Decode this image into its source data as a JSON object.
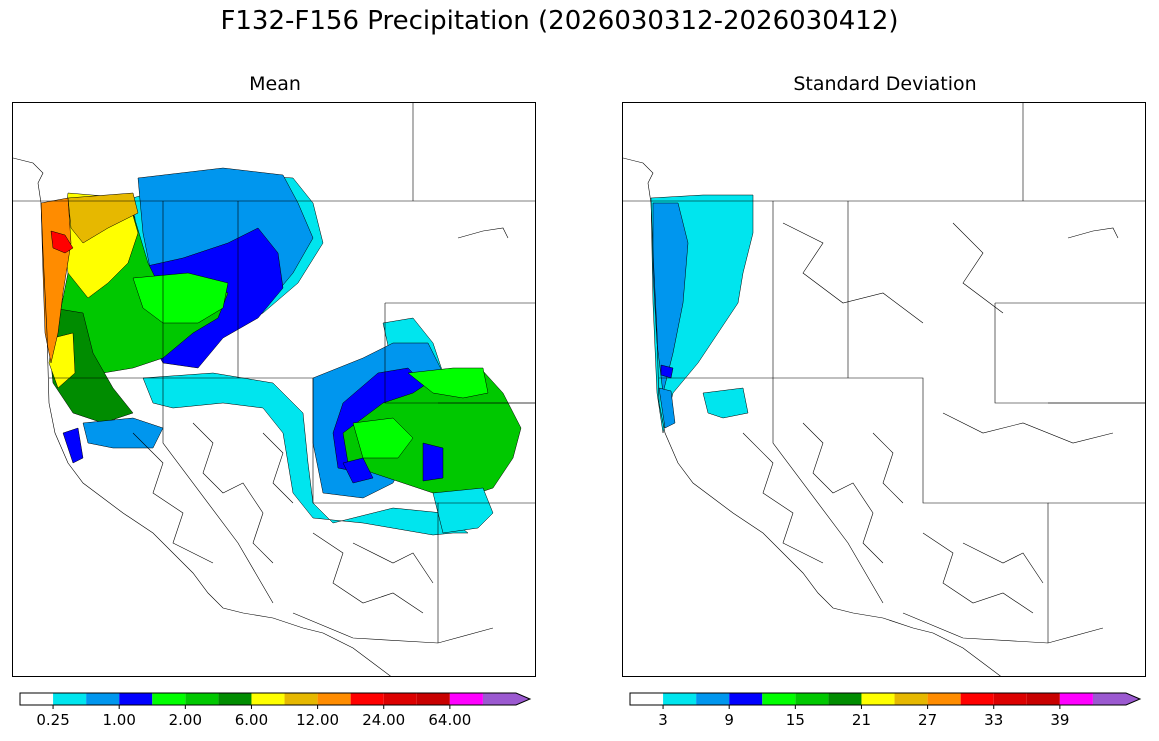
{
  "figure": {
    "title": "F132-F156 Precipitation (2026030312-2026030412)"
  },
  "palette": [
    "#ffffff",
    "#00e5ee",
    "#0096ee",
    "#0000ff",
    "#00ff00",
    "#00c800",
    "#008c00",
    "#ffff00",
    "#e6b800",
    "#ff8c00",
    "#ff0000",
    "#dc0000",
    "#c80000",
    "#ff00ff",
    "#9b59d0"
  ],
  "panels": [
    {
      "id": "mean",
      "title": "Mean",
      "colorbar_ticks": [
        "0.25",
        "1.00",
        "2.00",
        "6.00",
        "12.00",
        "24.00",
        "64.00"
      ],
      "tick_bin_edges": [
        1,
        3,
        5,
        7,
        9,
        11,
        13
      ]
    },
    {
      "id": "std",
      "title": "Standard Deviation",
      "colorbar_ticks": [
        "3",
        "9",
        "15",
        "21",
        "27",
        "33",
        "39"
      ],
      "tick_bin_edges": [
        1,
        3,
        5,
        7,
        9,
        11,
        13
      ]
    }
  ]
}
